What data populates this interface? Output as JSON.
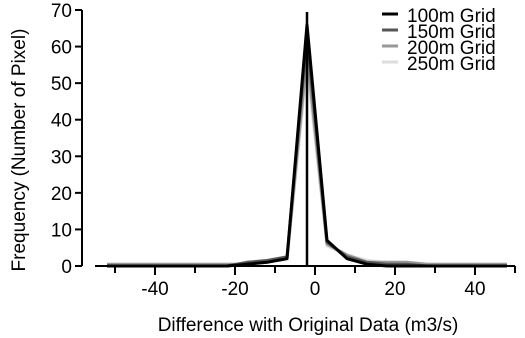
{
  "chart_data": {
    "type": "line",
    "title": "",
    "xlabel": "Difference with Original Data (m3/s)",
    "ylabel": "Frequency (Number of Pixel)",
    "xlim": [
      -55,
      50
    ],
    "ylim": [
      0,
      70
    ],
    "x_ticks": [
      -40,
      -20,
      0,
      20,
      40
    ],
    "x_tick_labels": [
      "-40",
      "-20",
      "0",
      "20",
      "40"
    ],
    "y_ticks": [
      0,
      10,
      20,
      30,
      40,
      50,
      60,
      70
    ],
    "y_tick_labels": [
      "0",
      "10",
      "20",
      "30",
      "40",
      "50",
      "60",
      "70"
    ],
    "reference_line_x": -2,
    "legend_position": "top-right",
    "grid": false,
    "series": [
      {
        "name": "100m Grid",
        "color": "#000000",
        "x": [
          -52,
          -47,
          -42,
          -37,
          -32,
          -27,
          -22,
          -17,
          -12,
          -7,
          -2,
          3,
          8,
          13,
          18,
          23,
          28,
          33,
          38,
          43,
          48
        ],
        "values": [
          0,
          0,
          0,
          0,
          0,
          0,
          0,
          0.5,
          1,
          2,
          66,
          7,
          2,
          0.5,
          0,
          0,
          0,
          0,
          0,
          0,
          0
        ]
      },
      {
        "name": "150m Grid",
        "color": "#555555",
        "x": [
          -52,
          -47,
          -42,
          -37,
          -32,
          -27,
          -22,
          -17,
          -12,
          -7,
          -2,
          3,
          8,
          13,
          18,
          23,
          28,
          33,
          38,
          43,
          48
        ],
        "values": [
          0,
          0,
          0,
          0,
          0,
          0,
          0,
          1,
          1.5,
          2.5,
          63,
          6.5,
          2.5,
          1,
          0.5,
          0.5,
          0,
          0,
          0,
          0,
          0
        ]
      },
      {
        "name": "200m Grid",
        "color": "#999999",
        "x": [
          -52,
          -47,
          -42,
          -37,
          -32,
          -27,
          -22,
          -17,
          -12,
          -7,
          -2,
          3,
          8,
          13,
          18,
          23,
          28,
          33,
          38,
          43,
          48
        ],
        "values": [
          0.5,
          0.5,
          0.5,
          0.5,
          0.5,
          0.5,
          0.5,
          0.5,
          1,
          2,
          58,
          6,
          3,
          1,
          1,
          1,
          0.5,
          0.5,
          0.5,
          0.5,
          0.5
        ]
      },
      {
        "name": "250m Grid",
        "color": "#dddddd",
        "x": [
          -52,
          -47,
          -42,
          -37,
          -32,
          -27,
          -22,
          -17,
          -12,
          -7,
          -2,
          3,
          8,
          13,
          18,
          23,
          28,
          33,
          38,
          43,
          48
        ],
        "values": [
          0.5,
          0.5,
          0.5,
          0.5,
          0.5,
          0.5,
          0.5,
          0.5,
          1,
          2,
          55,
          5.5,
          3,
          1.5,
          1,
          1,
          0.5,
          0.5,
          0.5,
          0.5,
          0.5
        ]
      }
    ]
  }
}
